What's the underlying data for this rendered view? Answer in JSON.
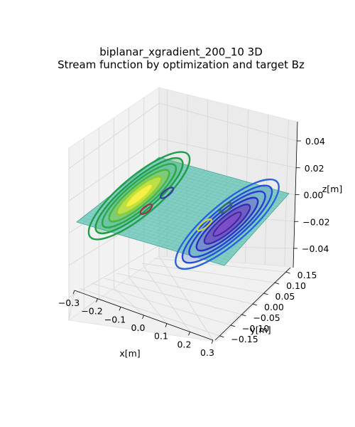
{
  "chart_data": {
    "type": "surface-3d-contour",
    "title_line1": "biplanar_xgradient_200_10 3D",
    "title_line2": "Stream function by optimization and target Bz",
    "xlabel": "x[m]",
    "ylabel": "y[m]",
    "zlabel": "z[m]",
    "x_ticks": [
      "−0.3",
      "−0.2",
      "−0.1",
      "0.0",
      "0.1",
      "0.2",
      "0.3"
    ],
    "y_ticks": [
      "−0.15",
      "−0.10",
      "−0.05",
      "0.00",
      "0.05",
      "0.10",
      "0.15"
    ],
    "z_ticks": [
      "−0.04",
      "−0.02",
      "0.00",
      "0.02",
      "0.04"
    ],
    "xlim": [
      -0.3,
      0.3
    ],
    "ylim": [
      -0.15,
      0.15
    ],
    "zlim": [
      -0.05,
      0.05
    ],
    "plane_z": 0.0,
    "plane_color": "#5fc4b4",
    "lobes": [
      {
        "name": "positive",
        "x_center": -0.14,
        "y_center": 0.0,
        "color_outer": "#1f9e49",
        "color_inner": "#e8ef3a"
      },
      {
        "name": "negative",
        "x_center": 0.14,
        "y_center": 0.0,
        "color_outer": "#2a4fd6",
        "color_inner": "#5a1ea0"
      }
    ],
    "contour_levels": 6,
    "grid": true
  }
}
